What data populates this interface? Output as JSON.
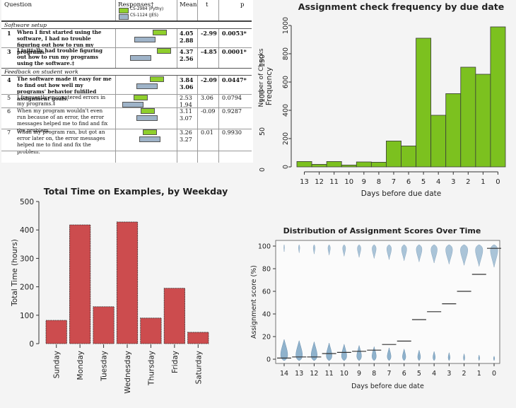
{
  "survey": {
    "headers": {
      "question": "Question",
      "responses": "Responses†",
      "mean": "Mean",
      "t": "t",
      "p": "p"
    },
    "legend": [
      {
        "label": "CS-2984 (Pythy)",
        "color": "#8fcf2c"
      },
      {
        "label": "CS-1124 (JES)",
        "color": "#9eb3c8"
      }
    ],
    "sections": [
      "Software setup",
      "Feedback on student work"
    ],
    "rows": [
      {
        "num": "1",
        "text": "When I first started using the software, I had no trouble figuring out how to run my programs.",
        "mean1": "4.05",
        "mean2": "2.88",
        "t": "-2.99",
        "p": "0.0053*",
        "bold": true
      },
      {
        "num": "3",
        "text": "I initially had trouble figuring out how to run my programs using the software.‡",
        "mean1": "4.37",
        "mean2": "2.56",
        "t": "-4.85",
        "p": "0.0001*",
        "bold": true
      },
      {
        "num": "4",
        "text": "The software made it easy for me to find out how well my programs' behavior fulfilled assignment goals.",
        "mean1": "3.84",
        "mean2": "3.06",
        "t": "-2.09",
        "p": "0.0447*",
        "bold": true
      },
      {
        "num": "5",
        "text": "I frequently encountered errors in my programs.‡",
        "mean1": "2.53",
        "mean2": "1.94",
        "t": "3.06",
        "p": "0.0794",
        "bold": false
      },
      {
        "num": "6",
        "text": "When my program wouldn't even run because of an error, the error messages helped me to find and fix the problem.",
        "mean1": "3.11",
        "mean2": "3.07",
        "t": "-0.09",
        "p": "0.9287",
        "bold": false
      },
      {
        "num": "7",
        "text": "When my program ran, but got an error later on, the error messages helped me to find and fix the problem.",
        "mean1": "3.26",
        "mean2": "3.27",
        "t": "0.01",
        "p": "0.9930",
        "bold": false
      }
    ]
  },
  "chart_data": [
    {
      "type": "bar",
      "title": "Assignment check frequency by due date",
      "xlabel": "Days before due date",
      "ylabel_outer": "Number of Checks",
      "ylabel": "Frequency",
      "categories": [
        "13",
        "12",
        "11",
        "10",
        "9",
        "8",
        "7",
        "6",
        "5",
        "4",
        "3",
        "2",
        "1",
        "0"
      ],
      "values": [
        38,
        18,
        38,
        13,
        35,
        33,
        183,
        148,
        910,
        365,
        518,
        705,
        655,
        990
      ],
      "ylim": [
        0,
        1000
      ],
      "yticks": [
        0,
        200,
        400,
        600,
        800,
        1000
      ],
      "yticks_outer": [
        0,
        50,
        100,
        150
      ],
      "color": "#7cc11f"
    },
    {
      "type": "bar",
      "title": "Total Time on Examples, by Weekday",
      "xlabel": "",
      "ylabel": "Total Time (hours)",
      "categories": [
        "Sunday",
        "Monday",
        "Tuesday",
        "Wednesday",
        "Thursday",
        "Friday",
        "Saturday"
      ],
      "values": [
        82,
        418,
        130,
        428,
        90,
        195,
        40
      ],
      "ylim": [
        0,
        500
      ],
      "yticks": [
        0,
        100,
        200,
        300,
        400,
        500
      ],
      "color": "#cc4c4e"
    },
    {
      "type": "violin",
      "title": "Distribution of Assignment Scores Over Time",
      "xlabel": "Days before due date",
      "ylabel": "Assignment score (%)",
      "categories": [
        "14",
        "13",
        "12",
        "11",
        "10",
        "9",
        "8",
        "7",
        "6",
        "5",
        "4",
        "3",
        "2",
        "1",
        "0"
      ],
      "medians": [
        1,
        2,
        2,
        5,
        6,
        7,
        8,
        13,
        16,
        35,
        42,
        49,
        60,
        75,
        98
      ],
      "ylim": [
        0,
        100
      ],
      "yticks": [
        0,
        20,
        40,
        60,
        80,
        100
      ],
      "color": "#8fb2cc"
    }
  ]
}
